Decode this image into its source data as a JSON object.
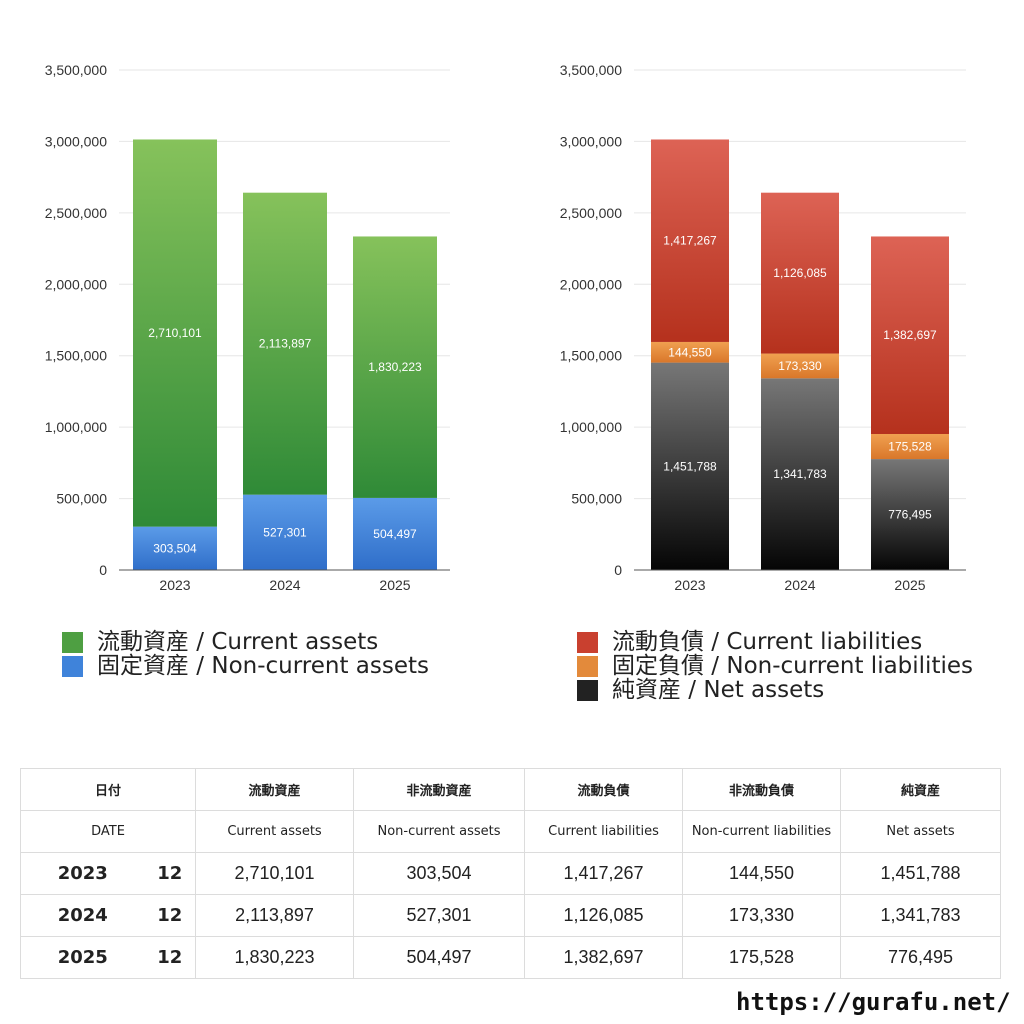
{
  "chart_data": [
    {
      "type": "bar",
      "stacked": true,
      "categories": [
        "2023",
        "2024",
        "2025"
      ],
      "yticks": [
        "0",
        "500,000",
        "1,000,000",
        "1,500,000",
        "2,000,000",
        "2,500,000",
        "3,000,000",
        "3,500,000"
      ],
      "ylim": [
        0,
        3500000
      ],
      "grid": true,
      "series": [
        {
          "name": "固定資産 / Non-current assets",
          "values": [
            303504,
            527301,
            504497
          ],
          "labels": [
            "303,504",
            "527,301",
            "504,497"
          ],
          "color_top": "#5b9be8",
          "color_bottom": "#2f6ec9"
        },
        {
          "name": "流動資産 / Current assets",
          "values": [
            2710101,
            2113897,
            1830223
          ],
          "labels": [
            "2,710,101",
            "2,113,897",
            "1,830,223"
          ],
          "color_top": "#86c25b",
          "color_bottom": "#2f8a37"
        }
      ]
    },
    {
      "type": "bar",
      "stacked": true,
      "categories": [
        "2023",
        "2024",
        "2025"
      ],
      "yticks": [
        "0",
        "500,000",
        "1,000,000",
        "1,500,000",
        "2,000,000",
        "2,500,000",
        "3,000,000",
        "3,500,000"
      ],
      "ylim": [
        0,
        3500000
      ],
      "grid": true,
      "series": [
        {
          "name": "純資産 / Net assets",
          "values": [
            1451788,
            1341783,
            776495
          ],
          "labels": [
            "1,451,788",
            "1,341,783",
            "776,495"
          ],
          "color_top": "#777777",
          "color_bottom": "#050505"
        },
        {
          "name": "固定負債 / Non-current liabilities",
          "values": [
            144550,
            173330,
            175528
          ],
          "labels": [
            "144,550",
            "173,330",
            "175,528"
          ],
          "color_top": "#f0a050",
          "color_bottom": "#d9772a"
        },
        {
          "name": "流動負債 / Current liabilities",
          "values": [
            1417267,
            1126085,
            1382697
          ],
          "labels": [
            "1,417,267",
            "1,126,085",
            "1,382,697"
          ],
          "color_top": "#dd6355",
          "color_bottom": "#b5311d"
        }
      ]
    }
  ],
  "legend_left": [
    {
      "label": "流動資産 / Current assets",
      "color": "#4e9f42"
    },
    {
      "label": "固定資産 / Non-current assets",
      "color": "#3f83da"
    }
  ],
  "legend_right": [
    {
      "label": "流動負債 / Current liabilities",
      "color": "#c9402f"
    },
    {
      "label": "固定負債 / Non-current liabilities",
      "color": "#e38a3b"
    },
    {
      "label": "純資産 / Net assets",
      "color": "#222222"
    }
  ],
  "table": {
    "header_ja": [
      "日付",
      "流動資産",
      "非流動資産",
      "流動負債",
      "非流動負債",
      "純資産"
    ],
    "header_en": [
      "DATE",
      "Current assets",
      "Non-current assets",
      "Current liabilities",
      "Non-current liabilities",
      "Net assets"
    ],
    "rows": [
      {
        "year": "2023",
        "month": "12",
        "values": [
          "2,710,101",
          "303,504",
          "1,417,267",
          "144,550",
          "1,451,788"
        ]
      },
      {
        "year": "2024",
        "month": "12",
        "values": [
          "2,113,897",
          "527,301",
          "1,126,085",
          "173,330",
          "1,341,783"
        ]
      },
      {
        "year": "2025",
        "month": "12",
        "values": [
          "1,830,223",
          "504,497",
          "1,382,697",
          "175,528",
          "776,495"
        ]
      }
    ]
  },
  "footer": {
    "url": "https://gurafu.net/"
  }
}
